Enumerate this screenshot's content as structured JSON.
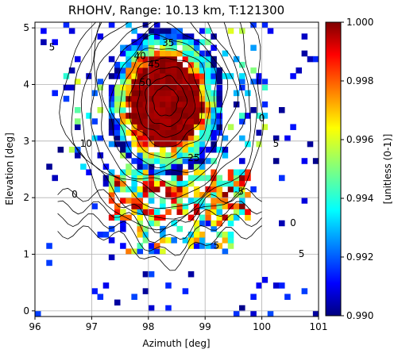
{
  "chart_data": {
    "type": "heatmap",
    "title": "RHOHV, Range: 10.13 km, T:121300",
    "xlabel": "Azimuth [deg]",
    "ylabel": "Elevation [deg]",
    "xlim": [
      96,
      101
    ],
    "ylim": [
      -0.1,
      5.1
    ],
    "x_ticks": [
      "96",
      "97",
      "98",
      "99",
      "100",
      "101"
    ],
    "y_ticks": [
      "0",
      "1",
      "2",
      "3",
      "4",
      "5"
    ],
    "grid": true,
    "colorbar": {
      "label": "[unitless (0-1)]",
      "range": [
        0.99,
        1.0
      ],
      "ticks": [
        "0.990",
        "0.992",
        "0.994",
        "0.996",
        "0.998",
        "1.000"
      ],
      "colormap": "jet"
    },
    "field": {
      "center_azimuth": 98.3,
      "center_elevation": 3.7,
      "core_value": 1.0,
      "edge_value": 0.99
    },
    "contour_labels": [
      "35",
      "40",
      "45",
      "50",
      "25",
      "5",
      "10",
      "0",
      "5",
      "5",
      "0",
      "5",
      "-5",
      "0"
    ],
    "colors": {
      "grid": "#b0b0b0",
      "contour": "#000000"
    }
  }
}
